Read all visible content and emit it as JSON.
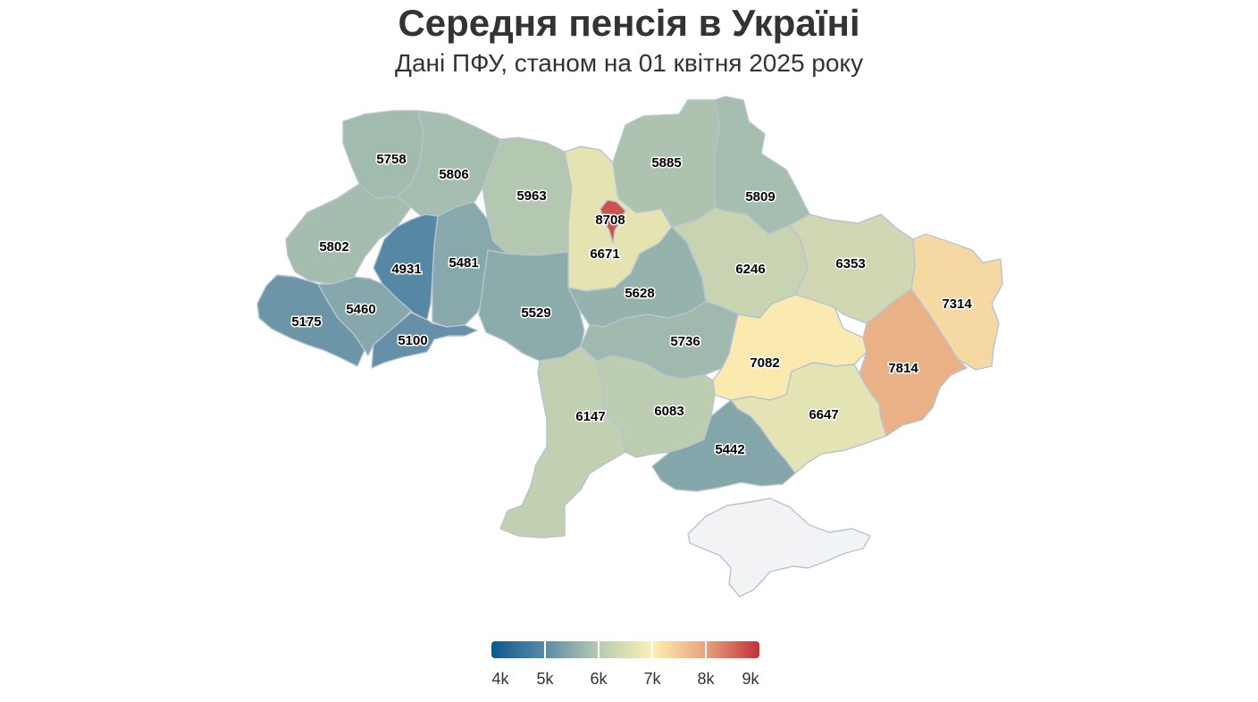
{
  "title": "Середня пенсія в Україні",
  "subtitle": "Дані ПФУ, станом на 01 квітня 2025 року",
  "map": {
    "color_scale": [
      "#0b5a8c",
      "#5c8aa6",
      "#b7cab1",
      "#fdf0b4",
      "#e7a37c",
      "#c2303d"
    ],
    "scale_min": 4000,
    "scale_max": 9000,
    "no_data_color": "#f2f3f5",
    "regions": [
      {
        "id": "volyn",
        "value": 5758
      },
      {
        "id": "rivne",
        "value": 5806
      },
      {
        "id": "zhytomyr",
        "value": 5963
      },
      {
        "id": "kyiv-oblast",
        "value": 6671
      },
      {
        "id": "kyiv-city",
        "value": 8708
      },
      {
        "id": "chernihiv",
        "value": 5885
      },
      {
        "id": "sumy",
        "value": 5809
      },
      {
        "id": "lviv",
        "value": 5802
      },
      {
        "id": "ternopil",
        "value": 4931
      },
      {
        "id": "khmelnytskyi",
        "value": 5481
      },
      {
        "id": "zakarpattia",
        "value": 5175
      },
      {
        "id": "ivano-frankivsk",
        "value": 5460
      },
      {
        "id": "chernivtsi",
        "value": 5100
      },
      {
        "id": "vinnytsia",
        "value": 5529
      },
      {
        "id": "cherkasy",
        "value": 5628
      },
      {
        "id": "poltava",
        "value": 6246
      },
      {
        "id": "kharkiv",
        "value": 6353
      },
      {
        "id": "luhansk",
        "value": 7314
      },
      {
        "id": "kirovohrad",
        "value": 5736
      },
      {
        "id": "dnipropetrovsk",
        "value": 7082
      },
      {
        "id": "donetsk",
        "value": 7814
      },
      {
        "id": "odesa",
        "value": 6147
      },
      {
        "id": "mykolaiv",
        "value": 6083
      },
      {
        "id": "zaporizhzhia",
        "value": 6647
      },
      {
        "id": "kherson",
        "value": 5442
      },
      {
        "id": "crimea",
        "value": null
      }
    ]
  },
  "legend": {
    "ticks": [
      "4k",
      "5k",
      "6k",
      "7k",
      "8k",
      "9k"
    ]
  }
}
